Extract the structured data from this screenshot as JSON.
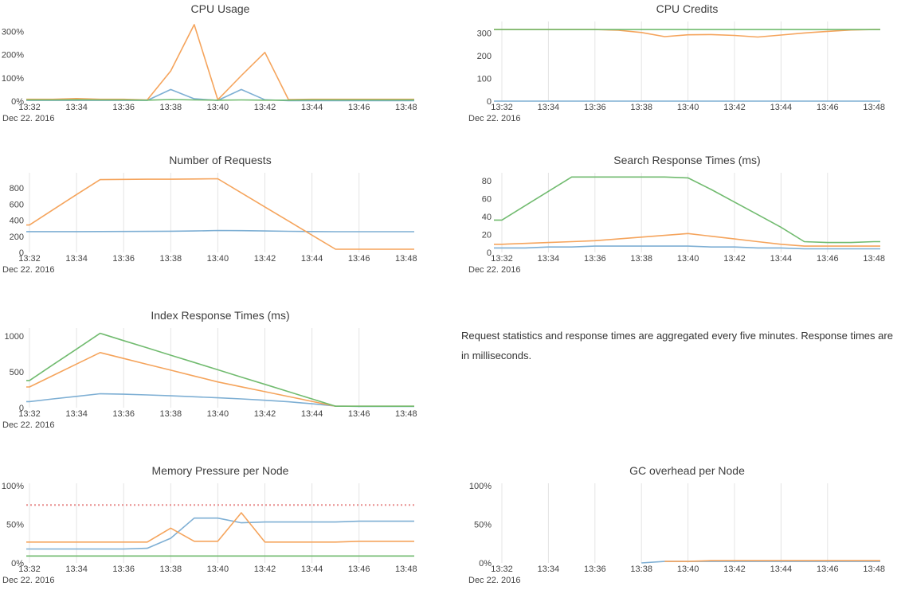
{
  "x_axis": {
    "date_label": "Dec 22. 2016",
    "tick_labels": [
      "13:32",
      "13:34",
      "13:36",
      "13:38",
      "13:40",
      "13:42",
      "13:44",
      "13:46",
      "13:48"
    ],
    "categories": [
      "13:32",
      "13:33",
      "13:34",
      "13:35",
      "13:36",
      "13:37",
      "13:38",
      "13:39",
      "13:40",
      "13:41",
      "13:42",
      "13:43",
      "13:44",
      "13:45",
      "13:46",
      "13:47",
      "13:48"
    ]
  },
  "style": {
    "background": "#ffffff",
    "grid_color": "#e4e4e4",
    "title_color": "#3d3d3d",
    "tick_color": "#444444",
    "note_color": "#333333",
    "series_colors": {
      "blue": "#7eafd4",
      "orange": "#f5a45c",
      "green": "#71bb6f"
    },
    "threshold_color": "#e88d8d"
  },
  "note": {
    "text": "Request statistics and response times are aggregated every five minutes. Response times are in milliseconds."
  },
  "chart_data": [
    {
      "type": "line",
      "title": "CPU Usage",
      "unit": "%",
      "ylim": [
        0,
        333
      ],
      "grid": false,
      "y_ticks": [
        {
          "value": 0,
          "label": "0%"
        },
        {
          "value": 100,
          "label": "100%"
        },
        {
          "value": 200,
          "label": "200%"
        },
        {
          "value": 300,
          "label": "300%"
        }
      ],
      "series": [
        {
          "name": "blue",
          "color": "#7eafd4",
          "values": [
            3,
            3,
            3,
            3,
            3,
            3,
            50,
            10,
            3,
            50,
            6,
            2,
            2,
            2,
            2,
            2,
            2
          ]
        },
        {
          "name": "orange",
          "color": "#f5a45c",
          "values": [
            8,
            8,
            11,
            8,
            8,
            5,
            130,
            330,
            6,
            110,
            210,
            7,
            8,
            8,
            8,
            8,
            8
          ]
        },
        {
          "name": "green",
          "color": "#71bb6f",
          "values": [
            5,
            5,
            6,
            5,
            5,
            4,
            7,
            5,
            4,
            5,
            4,
            4,
            5,
            5,
            5,
            5,
            5
          ]
        }
      ]
    },
    {
      "type": "line",
      "title": "CPU Credits",
      "unit": "",
      "ylim": [
        0,
        340
      ],
      "grid": true,
      "y_ticks": [
        {
          "value": 0,
          "label": "0"
        },
        {
          "value": 100,
          "label": "100"
        },
        {
          "value": 200,
          "label": "200"
        },
        {
          "value": 300,
          "label": "300"
        }
      ],
      "series": [
        {
          "name": "blue",
          "color": "#7eafd4",
          "values": [
            0,
            0,
            0,
            0,
            0,
            0,
            0,
            0,
            0,
            0,
            0,
            0,
            0,
            0,
            0,
            0,
            0
          ]
        },
        {
          "name": "orange",
          "color": "#f5a45c",
          "values": [
            315,
            315,
            315,
            315,
            315,
            312,
            302,
            284,
            292,
            293,
            289,
            282,
            291,
            300,
            307,
            313,
            315
          ]
        },
        {
          "name": "green",
          "color": "#71bb6f",
          "values": [
            315,
            315,
            315,
            315,
            315,
            315,
            315,
            315,
            315,
            315,
            315,
            315,
            315,
            315,
            315,
            315,
            315
          ]
        }
      ]
    },
    {
      "type": "line",
      "title": "Number of Requests",
      "unit": "",
      "ylim": [
        0,
        960
      ],
      "grid": true,
      "y_ticks": [
        {
          "value": 0,
          "label": "0"
        },
        {
          "value": 200,
          "label": "200"
        },
        {
          "value": 400,
          "label": "400"
        },
        {
          "value": 600,
          "label": "600"
        },
        {
          "value": 800,
          "label": "800"
        }
      ],
      "series": [
        {
          "name": "blue",
          "color": "#7eafd4",
          "values": [
            258,
            258,
            258,
            259,
            260,
            261,
            263,
            266,
            272,
            270,
            266,
            262,
            259,
            257,
            257,
            257,
            257
          ]
        },
        {
          "name": "orange",
          "color": "#f5a45c",
          "values": [
            340,
            530,
            720,
            905,
            908,
            910,
            910,
            912,
            915,
            740,
            565,
            390,
            215,
            40,
            40,
            40,
            40
          ]
        }
      ]
    },
    {
      "type": "line",
      "title": "Search Response Times (ms)",
      "unit": "ms",
      "ylim": [
        0,
        86
      ],
      "grid": true,
      "y_ticks": [
        {
          "value": 0,
          "label": "0"
        },
        {
          "value": 20,
          "label": "20"
        },
        {
          "value": 40,
          "label": "40"
        },
        {
          "value": 60,
          "label": "60"
        },
        {
          "value": 80,
          "label": "80"
        }
      ],
      "series": [
        {
          "name": "blue",
          "color": "#7eafd4",
          "values": [
            5,
            5,
            6,
            6,
            7,
            7,
            7,
            7,
            7,
            6,
            6,
            5,
            5,
            4,
            4,
            4,
            4
          ]
        },
        {
          "name": "orange",
          "color": "#f5a45c",
          "values": [
            9,
            10,
            11,
            12,
            13,
            15,
            17,
            19,
            21,
            18,
            15,
            12,
            9,
            7,
            7,
            7,
            7
          ]
        },
        {
          "name": "green",
          "color": "#71bb6f",
          "values": [
            36,
            52,
            68,
            84,
            84,
            84,
            84,
            84,
            83,
            70,
            56,
            42,
            28,
            12,
            11,
            11,
            12
          ]
        }
      ]
    },
    {
      "type": "line",
      "title": "Index Response Times (ms)",
      "unit": "ms",
      "ylim": [
        0,
        1080
      ],
      "grid": true,
      "y_ticks": [
        {
          "value": 0,
          "label": "0"
        },
        {
          "value": 500,
          "label": "500"
        },
        {
          "value": 1000,
          "label": "1000"
        }
      ],
      "series": [
        {
          "name": "blue",
          "color": "#7eafd4",
          "values": [
            85,
            122,
            158,
            195,
            188,
            178,
            166,
            152,
            138,
            122,
            104,
            82,
            55,
            22,
            18,
            18,
            18
          ]
        },
        {
          "name": "orange",
          "color": "#f5a45c",
          "values": [
            290,
            450,
            610,
            770,
            688,
            606,
            524,
            442,
            360,
            292,
            224,
            156,
            88,
            20,
            20,
            20,
            20
          ]
        },
        {
          "name": "green",
          "color": "#71bb6f",
          "values": [
            380,
            600,
            820,
            1040,
            938,
            836,
            734,
            632,
            530,
            428,
            326,
            224,
            122,
            20,
            20,
            20,
            20
          ]
        }
      ]
    },
    {
      "type": "line",
      "title": "Memory Pressure per Node",
      "unit": "%",
      "ylim": [
        0,
        100
      ],
      "grid": true,
      "threshold": {
        "value": 75,
        "color": "#e88d8d",
        "style": "dotted"
      },
      "y_ticks": [
        {
          "value": 0,
          "label": "0%"
        },
        {
          "value": 50,
          "label": "50%"
        },
        {
          "value": 100,
          "label": "100%"
        }
      ],
      "series": [
        {
          "name": "blue",
          "color": "#7eafd4",
          "values": [
            18,
            18,
            18,
            18,
            18,
            19,
            32,
            58,
            58,
            52,
            53,
            53,
            53,
            53,
            54,
            54,
            54
          ]
        },
        {
          "name": "orange",
          "color": "#f5a45c",
          "values": [
            27,
            27,
            27,
            27,
            27,
            27,
            45,
            28,
            28,
            65,
            27,
            27,
            27,
            27,
            28,
            28,
            28
          ]
        },
        {
          "name": "green",
          "color": "#71bb6f",
          "values": [
            9,
            9,
            9,
            9,
            9,
            9,
            9,
            9,
            9,
            9,
            9,
            9,
            9,
            9,
            9,
            9,
            9
          ]
        }
      ]
    },
    {
      "type": "line",
      "title": "GC overhead per Node",
      "unit": "%",
      "ylim": [
        0,
        100
      ],
      "grid": true,
      "y_ticks": [
        {
          "value": 0,
          "label": "0%"
        },
        {
          "value": 50,
          "label": "50%"
        },
        {
          "value": 100,
          "label": "100%"
        }
      ],
      "series": [
        {
          "name": "blue",
          "color": "#7eafd4",
          "values": [
            null,
            null,
            null,
            null,
            null,
            null,
            0,
            2,
            2,
            2,
            2,
            2,
            2,
            2,
            2,
            2,
            2
          ]
        },
        {
          "name": "orange",
          "color": "#f5a45c",
          "values": [
            null,
            null,
            null,
            null,
            null,
            null,
            null,
            2,
            2,
            3,
            3,
            3,
            3,
            3,
            3,
            3,
            3
          ]
        }
      ]
    }
  ]
}
